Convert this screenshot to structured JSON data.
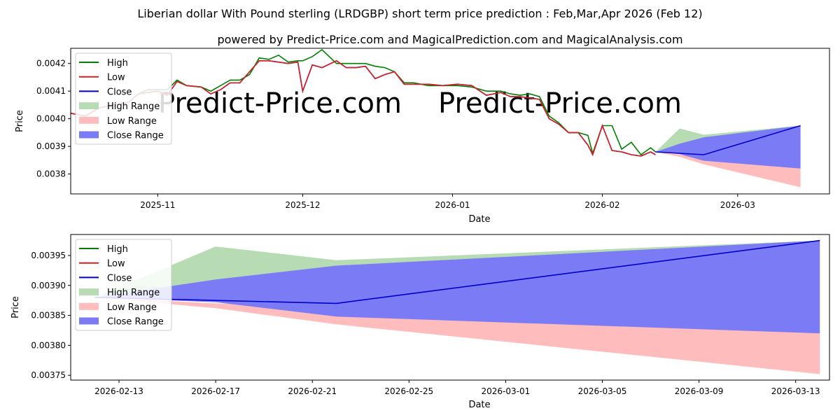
{
  "title": "Liberian dollar With Pound sterling (LRDGBP) short term price prediction : Feb,Mar,Apr 2026 (Feb 12)",
  "subtitle": "powered by Predict-Price.com and MagicalPrediction.com and MagicalAnalysis.com",
  "watermark": "Predict-Price.com",
  "colors": {
    "high": "#008000",
    "low": "#d62020",
    "close": "#0000cc",
    "high_range": "#b7dcb4",
    "low_range": "#ffbcbc",
    "close_range": "#7b7bf6"
  },
  "chart_data": [
    {
      "type": "line",
      "panel": "top",
      "xlabel": "Date",
      "ylabel": "Price",
      "x_start": "2025-10-14",
      "x_end": "2026-03-20",
      "ylim": [
        0.003728,
        0.004255
      ],
      "x_ticks": [
        {
          "date": "2025-11-01",
          "label": "2025-11"
        },
        {
          "date": "2025-12-01",
          "label": "2025-12"
        },
        {
          "date": "2026-01-01",
          "label": "2026-01"
        },
        {
          "date": "2026-02-01",
          "label": "2026-02"
        },
        {
          "date": "2026-03-01",
          "label": "2026-03"
        }
      ],
      "y_ticks": [
        {
          "value": 0.0038,
          "label": "0.0038"
        },
        {
          "value": 0.0039,
          "label": "0.0039"
        },
        {
          "value": 0.004,
          "label": "0.0040"
        },
        {
          "value": 0.0041,
          "label": "0.0041"
        },
        {
          "value": 0.0042,
          "label": "0.0042"
        }
      ],
      "legend": {
        "position": "top-left",
        "entries": [
          "High",
          "Low",
          "Close",
          "High Range",
          "Low Range",
          "Close Range"
        ]
      },
      "history_dates": [
        "2025-10-14",
        "2025-10-17",
        "2025-10-20",
        "2025-10-23",
        "2025-10-26",
        "2025-10-28",
        "2025-10-30",
        "2025-11-01",
        "2025-11-03",
        "2025-11-05",
        "2025-11-07",
        "2025-11-10",
        "2025-11-12",
        "2025-11-14",
        "2025-11-16",
        "2025-11-18",
        "2025-11-20",
        "2025-11-22",
        "2025-11-24",
        "2025-11-26",
        "2025-11-28",
        "2025-11-30",
        "2025-12-01",
        "2025-12-03",
        "2025-12-05",
        "2025-12-08",
        "2025-12-10",
        "2025-12-12",
        "2025-12-14",
        "2025-12-16",
        "2025-12-18",
        "2025-12-20",
        "2025-12-22",
        "2025-12-24",
        "2025-12-27",
        "2025-12-30",
        "2026-01-02",
        "2026-01-05",
        "2026-01-08",
        "2026-01-11",
        "2026-01-13",
        "2026-01-15",
        "2026-01-17",
        "2026-01-19",
        "2026-01-21",
        "2026-01-23",
        "2026-01-25",
        "2026-01-27",
        "2026-01-29",
        "2026-01-30",
        "2026-02-01",
        "2026-02-03",
        "2026-02-05",
        "2026-02-07",
        "2026-02-09",
        "2026-02-11",
        "2026-02-12"
      ],
      "history_high": [
        0.00402,
        0.00401,
        0.00404,
        0.00405,
        0.00406,
        0.00409,
        0.004105,
        0.004105,
        0.004105,
        0.00414,
        0.00412,
        0.004115,
        0.0041,
        0.00412,
        0.00414,
        0.00414,
        0.00416,
        0.00422,
        0.004215,
        0.00423,
        0.004205,
        0.00421,
        0.00421,
        0.004225,
        0.00425,
        0.0042,
        0.0042,
        0.0042,
        0.0042,
        0.00419,
        0.004185,
        0.00417,
        0.00413,
        0.00413,
        0.00412,
        0.00412,
        0.00412,
        0.004115,
        0.0041,
        0.0041,
        0.00409,
        0.004085,
        0.00409,
        0.00408,
        0.00401,
        0.003985,
        0.00395,
        0.00395,
        0.00394,
        0.003875,
        0.003975,
        0.003975,
        0.00389,
        0.003915,
        0.00387,
        0.003895,
        0.00388
      ],
      "history_low": [
        0.00402,
        0.00401,
        0.00404,
        0.00405,
        0.00406,
        0.00409,
        0.004095,
        0.0041,
        0.004085,
        0.004135,
        0.00412,
        0.004115,
        0.00409,
        0.004105,
        0.00413,
        0.00413,
        0.00417,
        0.00421,
        0.00421,
        0.004205,
        0.0042,
        0.004205,
        0.0041,
        0.004195,
        0.004185,
        0.00421,
        0.004185,
        0.004185,
        0.00419,
        0.004145,
        0.00416,
        0.00417,
        0.004125,
        0.004125,
        0.004125,
        0.00412,
        0.004125,
        0.00412,
        0.004085,
        0.004095,
        0.00408,
        0.00408,
        0.004075,
        0.00407,
        0.004,
        0.00398,
        0.00395,
        0.00395,
        0.003905,
        0.00387,
        0.003975,
        0.003885,
        0.00388,
        0.00387,
        0.003865,
        0.00388,
        0.00387
      ],
      "history_close": [
        0.00402,
        0.00401,
        0.00404,
        0.00405,
        0.00406,
        0.00409,
        0.004095,
        0.0041,
        0.004085,
        0.004135,
        0.00412,
        0.004115,
        0.00409,
        0.004105,
        0.00413,
        0.00413,
        0.00417,
        0.00421,
        0.00421,
        0.004205,
        0.0042,
        0.004205,
        0.0041,
        0.004195,
        0.004185,
        0.00421,
        0.004185,
        0.004185,
        0.00419,
        0.004145,
        0.00416,
        0.00417,
        0.004125,
        0.004125,
        0.004125,
        0.00412,
        0.004125,
        0.00412,
        0.004085,
        0.004095,
        0.00408,
        0.00408,
        0.004075,
        0.00407,
        0.004,
        0.00398,
        0.00395,
        0.00395,
        0.003905,
        0.00387,
        0.003975,
        0.003885,
        0.00388,
        0.00387,
        0.003865,
        0.00388,
        0.00387
      ]
    },
    {
      "type": "line",
      "panel": "bottom",
      "xlabel": "Date",
      "ylabel": "Price",
      "x_start": "2026-02-11",
      "x_end": "2026-03-14.4",
      "ylim": [
        0.003742,
        0.003985
      ],
      "x_ticks": [
        {
          "date": "2026-02-13",
          "label": "2026-02-13"
        },
        {
          "date": "2026-02-17",
          "label": "2026-02-17"
        },
        {
          "date": "2026-02-21",
          "label": "2026-02-21"
        },
        {
          "date": "2026-02-25",
          "label": "2026-02-25"
        },
        {
          "date": "2026-03-01",
          "label": "2026-03-01"
        },
        {
          "date": "2026-03-05",
          "label": "2026-03-05"
        },
        {
          "date": "2026-03-09",
          "label": "2026-03-09"
        },
        {
          "date": "2026-03-13",
          "label": "2026-03-13"
        }
      ],
      "y_ticks": [
        {
          "value": 0.00375,
          "label": "0.00375"
        },
        {
          "value": 0.0038,
          "label": "0.00380"
        },
        {
          "value": 0.00385,
          "label": "0.00385"
        },
        {
          "value": 0.0039,
          "label": "0.00390"
        },
        {
          "value": 0.00395,
          "label": "0.00395"
        }
      ],
      "legend": {
        "position": "top-left",
        "entries": [
          "High",
          "Low",
          "Close",
          "High Range",
          "Low Range",
          "Close Range"
        ]
      }
    }
  ],
  "forecast": {
    "dates": [
      "2026-02-12",
      "2026-02-17",
      "2026-02-22",
      "2026-03-14"
    ],
    "high_upper": [
      0.00388,
      0.003965,
      0.003942,
      0.003975
    ],
    "high_lower": [
      0.00388,
      0.00388,
      0.00386,
      0.003975
    ],
    "low_upper": [
      0.00388,
      0.00387,
      0.003865,
      0.00382
    ],
    "low_lower": [
      0.00388,
      0.003862,
      0.003835,
      0.003752
    ],
    "close_upper": [
      0.00388,
      0.00391,
      0.003933,
      0.003975
    ],
    "close_lower": [
      0.00388,
      0.003872,
      0.003848,
      0.00382
    ],
    "close_line": [
      0.00388,
      0.003875,
      0.00387,
      0.003975
    ]
  }
}
